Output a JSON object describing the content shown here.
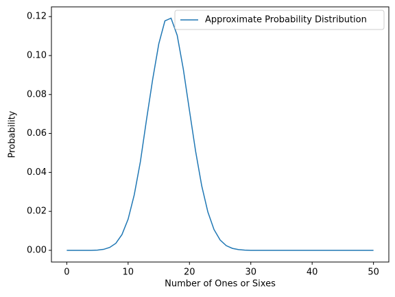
{
  "chart_data": {
    "type": "line",
    "x_label": "Number of Ones or Sixes",
    "y_label": "Probability",
    "x": [
      0,
      1,
      2,
      3,
      4,
      5,
      6,
      7,
      8,
      9,
      10,
      11,
      12,
      13,
      14,
      15,
      16,
      17,
      18,
      19,
      20,
      21,
      22,
      23,
      24,
      25,
      26,
      27,
      28,
      29,
      30,
      31,
      32,
      33,
      34,
      35,
      36,
      37,
      38,
      39,
      40,
      41,
      42,
      43,
      44,
      45,
      46,
      47,
      48,
      49,
      50
    ],
    "series": [
      {
        "name": "Approximate Probability Distribution",
        "color": "#1f77b4",
        "values": [
          0,
          0,
          0,
          0,
          0,
          0.0001,
          0.0005,
          0.0015,
          0.0036,
          0.0081,
          0.016,
          0.0285,
          0.0455,
          0.0671,
          0.0877,
          0.106,
          0.1178,
          0.1192,
          0.1104,
          0.093,
          0.0718,
          0.0509,
          0.0331,
          0.0197,
          0.0107,
          0.0053,
          0.0024,
          0.001,
          0.0004,
          0.0001,
          0,
          0,
          0,
          0,
          0,
          0,
          0,
          0,
          0,
          0,
          0,
          0,
          0,
          0,
          0,
          0,
          0,
          0,
          0,
          0,
          0
        ]
      }
    ],
    "xlim": [
      -2.5,
      52.5
    ],
    "xticks": [
      0,
      10,
      20,
      30,
      40,
      50
    ],
    "ylim": [
      -0.006,
      0.125
    ],
    "yticks": [
      {
        "value": 0,
        "label": "0.00"
      },
      {
        "value": 0.02,
        "label": "0.02"
      },
      {
        "value": 0.04,
        "label": "0.04"
      },
      {
        "value": 0.06,
        "label": "0.06"
      },
      {
        "value": 0.08,
        "label": "0.08"
      },
      {
        "value": 0.1,
        "label": "0.10"
      },
      {
        "value": 0.12,
        "label": "0.12"
      }
    ],
    "legend": "upper right"
  }
}
